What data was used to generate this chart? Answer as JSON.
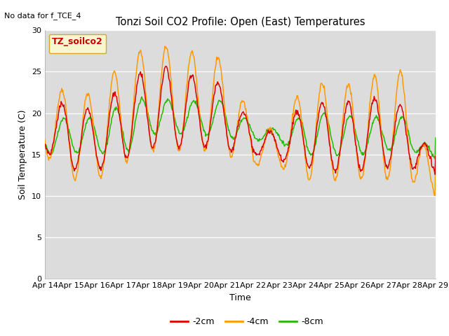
{
  "title": "Tonzi Soil CO2 Profile: Open (East) Temperatures",
  "no_data_label": "No data for f_TCE_4",
  "ylabel": "Soil Temperature (C)",
  "xlabel": "Time",
  "ylim": [
    0,
    30
  ],
  "yticks": [
    0,
    5,
    10,
    15,
    20,
    25,
    30
  ],
  "legend_title": "TZ_soilco2",
  "series_labels": [
    "-2cm",
    "-4cm",
    "-8cm"
  ],
  "series_colors": [
    "#dd0000",
    "#ff9900",
    "#22bb00"
  ],
  "x_tick_labels": [
    "Apr 14",
    "Apr 15",
    "Apr 16",
    "Apr 17",
    "Apr 18",
    "Apr 19",
    "Apr 20",
    "Apr 21",
    "Apr 22",
    "Apr 23",
    "Apr 24",
    "Apr 25",
    "Apr 26",
    "Apr 27",
    "Apr 28",
    "Apr 29"
  ],
  "plot_bg": "#dcdcdc",
  "fig_bg": "#ffffff",
  "grid_color": "#ffffff",
  "spine_color": "#aaaaaa"
}
